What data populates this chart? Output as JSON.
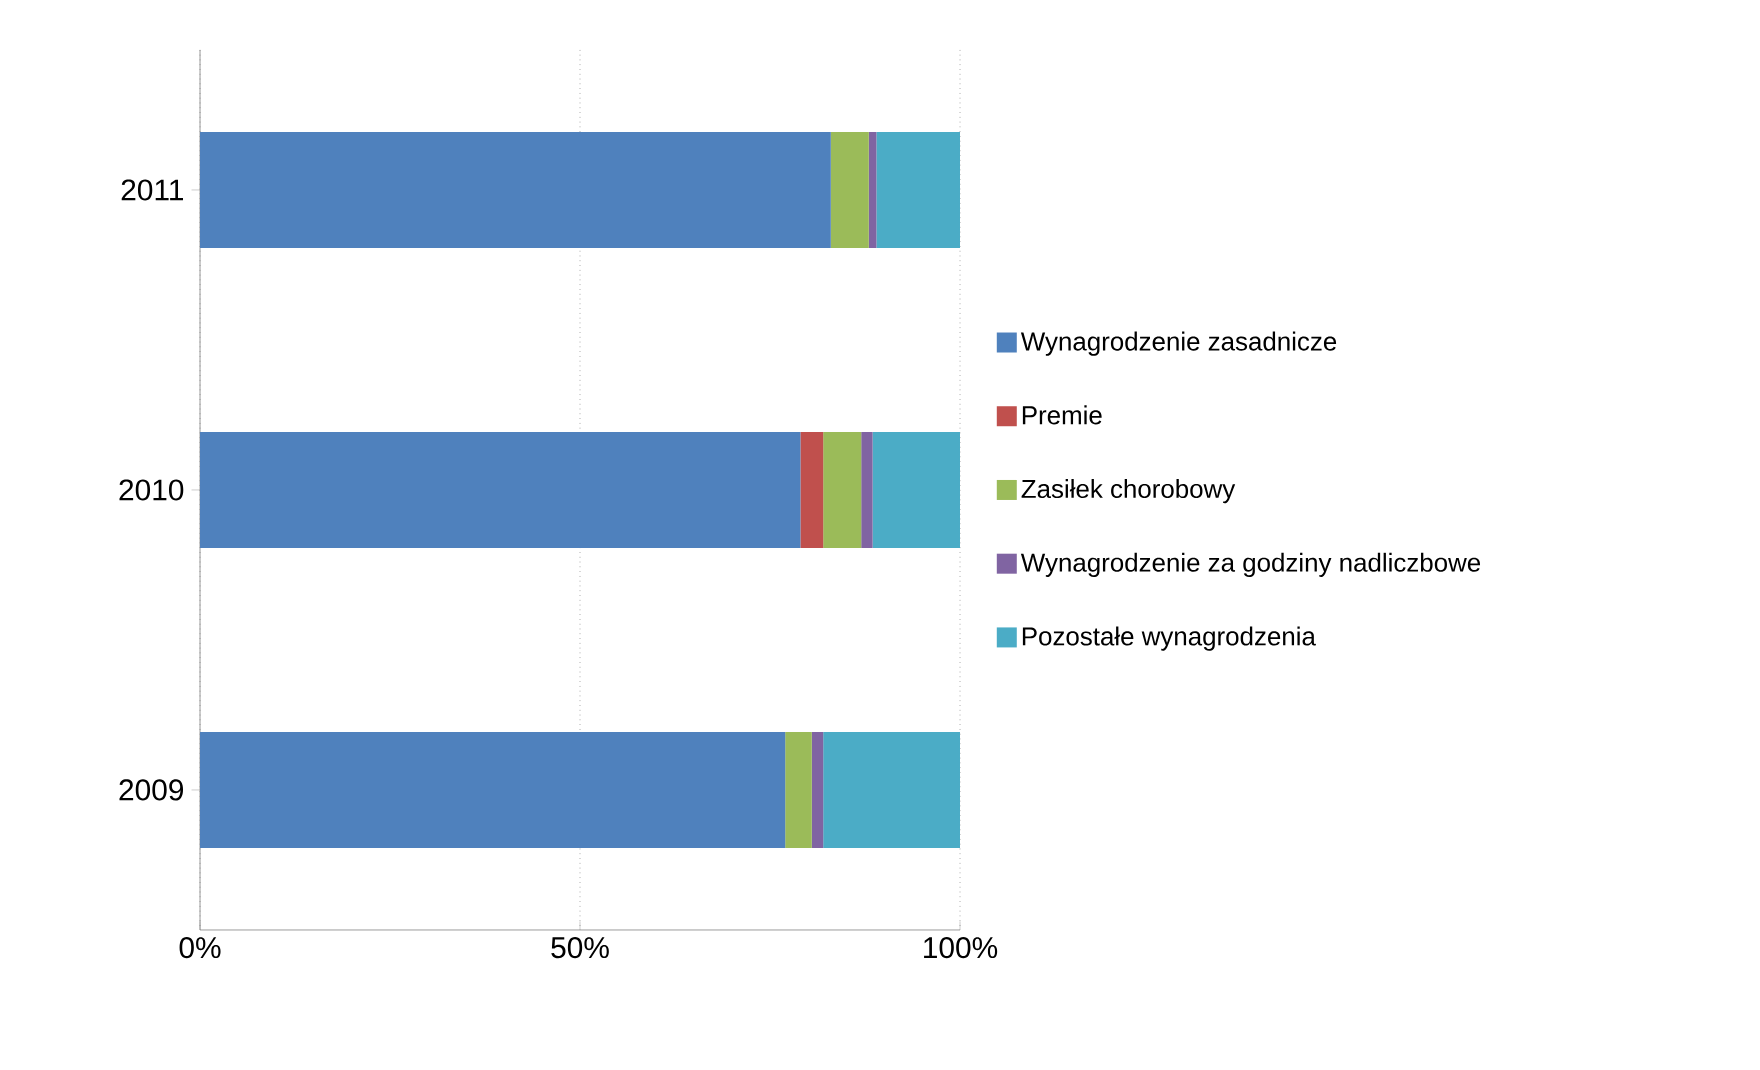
{
  "chart_data": {
    "type": "bar",
    "orientation": "horizontal",
    "stacked": true,
    "categories": [
      "2011",
      "2010",
      "2009"
    ],
    "series": [
      {
        "name": "Wynagrodzenie zasadnicze",
        "color": "#4f81bd",
        "values": [
          83,
          79,
          77
        ]
      },
      {
        "name": "Premie",
        "color": "#c0504d",
        "values": [
          0,
          3,
          0
        ]
      },
      {
        "name": "Zasiłek chorobowy",
        "color": "#9bbb59",
        "values": [
          5,
          5,
          3.5
        ]
      },
      {
        "name": "Wynagrodzenie za godziny nadliczbowe",
        "color": "#8064a2",
        "values": [
          1,
          1.5,
          1.5
        ]
      },
      {
        "name": "Pozostałe wynagrodzenia",
        "color": "#4bacc6",
        "values": [
          11,
          11.5,
          18
        ]
      }
    ],
    "xlim": [
      0,
      100
    ],
    "xticks": [
      {
        "value": 0,
        "label": "0%"
      },
      {
        "value": 50,
        "label": "50%"
      },
      {
        "value": 100,
        "label": "100%"
      }
    ],
    "grid": "x",
    "legend": "right"
  }
}
